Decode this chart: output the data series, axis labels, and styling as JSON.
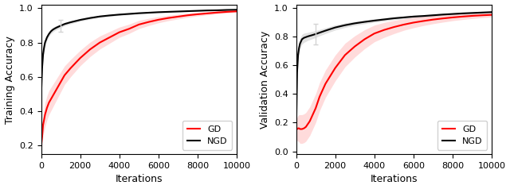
{
  "iterations": [
    1,
    50,
    100,
    150,
    200,
    300,
    400,
    500,
    600,
    700,
    800,
    900,
    1000,
    1200,
    1500,
    2000,
    2500,
    3000,
    3500,
    4000,
    4500,
    5000,
    5500,
    6000,
    6500,
    7000,
    7500,
    8000,
    8500,
    9000,
    9500,
    10000
  ],
  "train_ngd_mean": [
    0.49,
    0.65,
    0.73,
    0.77,
    0.8,
    0.83,
    0.85,
    0.865,
    0.875,
    0.882,
    0.888,
    0.893,
    0.898,
    0.908,
    0.918,
    0.932,
    0.943,
    0.952,
    0.958,
    0.963,
    0.967,
    0.971,
    0.974,
    0.977,
    0.979,
    0.981,
    0.983,
    0.985,
    0.987,
    0.988,
    0.99,
    0.991
  ],
  "train_ngd_std": [
    0.025,
    0.025,
    0.022,
    0.02,
    0.018,
    0.016,
    0.015,
    0.014,
    0.013,
    0.013,
    0.012,
    0.012,
    0.011,
    0.01,
    0.009,
    0.008,
    0.007,
    0.006,
    0.006,
    0.005,
    0.005,
    0.004,
    0.004,
    0.004,
    0.003,
    0.003,
    0.003,
    0.003,
    0.002,
    0.002,
    0.002,
    0.002
  ],
  "train_gd_mean": [
    0.2,
    0.25,
    0.32,
    0.35,
    0.38,
    0.42,
    0.45,
    0.47,
    0.49,
    0.51,
    0.53,
    0.55,
    0.57,
    0.61,
    0.65,
    0.71,
    0.76,
    0.8,
    0.83,
    0.86,
    0.88,
    0.905,
    0.92,
    0.933,
    0.943,
    0.951,
    0.959,
    0.965,
    0.97,
    0.975,
    0.979,
    0.982
  ],
  "train_gd_std": [
    0.04,
    0.05,
    0.06,
    0.065,
    0.07,
    0.07,
    0.07,
    0.068,
    0.066,
    0.064,
    0.062,
    0.06,
    0.058,
    0.054,
    0.05,
    0.045,
    0.042,
    0.038,
    0.034,
    0.03,
    0.027,
    0.024,
    0.021,
    0.018,
    0.016,
    0.014,
    0.012,
    0.01,
    0.009,
    0.008,
    0.007,
    0.006
  ],
  "val_ngd_mean": [
    0.13,
    0.55,
    0.67,
    0.72,
    0.75,
    0.78,
    0.79,
    0.795,
    0.8,
    0.804,
    0.808,
    0.812,
    0.816,
    0.826,
    0.84,
    0.862,
    0.878,
    0.891,
    0.901,
    0.91,
    0.918,
    0.926,
    0.932,
    0.938,
    0.942,
    0.947,
    0.952,
    0.956,
    0.96,
    0.963,
    0.966,
    0.969
  ],
  "val_ngd_std": [
    0.025,
    0.035,
    0.04,
    0.038,
    0.036,
    0.034,
    0.032,
    0.03,
    0.028,
    0.027,
    0.026,
    0.025,
    0.024,
    0.022,
    0.02,
    0.018,
    0.016,
    0.014,
    0.013,
    0.012,
    0.011,
    0.01,
    0.009,
    0.009,
    0.008,
    0.008,
    0.007,
    0.007,
    0.006,
    0.006,
    0.005,
    0.005
  ],
  "val_gd_mean": [
    0.15,
    0.155,
    0.16,
    0.16,
    0.155,
    0.155,
    0.16,
    0.17,
    0.19,
    0.21,
    0.24,
    0.27,
    0.3,
    0.38,
    0.47,
    0.58,
    0.67,
    0.73,
    0.78,
    0.82,
    0.845,
    0.865,
    0.882,
    0.896,
    0.907,
    0.917,
    0.925,
    0.932,
    0.938,
    0.943,
    0.947,
    0.95
  ],
  "val_gd_std": [
    0.07,
    0.08,
    0.09,
    0.095,
    0.1,
    0.1,
    0.1,
    0.1,
    0.1,
    0.1,
    0.1,
    0.1,
    0.1,
    0.098,
    0.095,
    0.09,
    0.082,
    0.074,
    0.066,
    0.058,
    0.052,
    0.046,
    0.04,
    0.036,
    0.032,
    0.029,
    0.026,
    0.023,
    0.021,
    0.019,
    0.017,
    0.015
  ],
  "train_title": "Training Accuracy",
  "val_title": "Validation Accuracy",
  "xlabel": "Iterations",
  "gd_color": "#FF0000",
  "ngd_color": "#000000",
  "gd_fill_color": "#FF9999",
  "ngd_fill_color": "#AAAAAA",
  "gd_fill_alpha": 0.35,
  "ngd_fill_alpha": 0.35,
  "xlim": [
    0,
    10000
  ],
  "train_ylim": [
    0.15,
    1.02
  ],
  "val_ylim": [
    -0.02,
    1.02
  ],
  "train_yticks": [
    0.2,
    0.4,
    0.6,
    0.8,
    1.0
  ],
  "val_yticks": [
    0.0,
    0.2,
    0.4,
    0.6,
    0.8,
    1.0
  ],
  "xticks": [
    0,
    2000,
    4000,
    6000,
    8000,
    10000
  ],
  "ngd_eb_idx": 12,
  "train_gd_eb_idx": 12,
  "val_gd_eb_show": false,
  "figsize": [
    6.4,
    2.38
  ],
  "dpi": 100
}
